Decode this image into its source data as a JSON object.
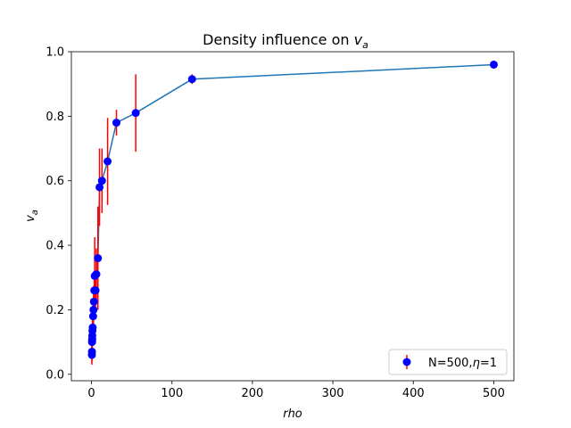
{
  "chart_data": {
    "type": "line",
    "title_main": "Density influence on ",
    "title_sym": "v",
    "title_sub": "a",
    "xlabel": "rho",
    "ylabel_sym": "v",
    "ylabel_sub": "a",
    "xlim": [
      -25,
      525
    ],
    "ylim": [
      -0.02,
      1.0
    ],
    "x_ticks": [
      0,
      100,
      200,
      300,
      400,
      500
    ],
    "x_tick_labels": [
      "0",
      "100",
      "200",
      "300",
      "400",
      "500"
    ],
    "y_ticks": [
      0.0,
      0.2,
      0.4,
      0.6,
      0.8,
      1.0
    ],
    "y_tick_labels": [
      "0.0",
      "0.2",
      "0.4",
      "0.6",
      "0.8",
      "1.0"
    ],
    "grid": false,
    "legend_position": "lower-right",
    "legend_text_main": "N=500,",
    "legend_text_sym": "η",
    "legend_text_tail": "=1",
    "colors": {
      "line": "#1f77b4",
      "marker": "#0000ff",
      "errorbar": "#ff0000"
    },
    "series": [
      {
        "x": [
          0.5,
          0.6,
          0.7,
          0.8,
          0.9,
          1.0,
          1.2,
          1.5,
          2.0,
          2.5,
          3.0,
          3.5,
          4.0,
          5.0,
          6.0,
          8.0,
          10.0,
          13.0,
          20.0,
          31.0,
          55.0,
          125.0,
          500.0
        ],
        "y": [
          0.06,
          0.07,
          0.1,
          0.105,
          0.11,
          0.12,
          0.135,
          0.145,
          0.18,
          0.2,
          0.225,
          0.26,
          0.305,
          0.26,
          0.31,
          0.36,
          0.58,
          0.6,
          0.66,
          0.78,
          0.81,
          0.915,
          0.96
        ],
        "err": [
          0.03,
          0.03,
          0.04,
          0.04,
          0.03,
          0.03,
          0.04,
          0.04,
          0.05,
          0.05,
          0.05,
          0.06,
          0.12,
          0.05,
          0.08,
          0.16,
          0.12,
          0.1,
          0.135,
          0.04,
          0.12,
          0.015,
          0.005
        ]
      }
    ]
  }
}
